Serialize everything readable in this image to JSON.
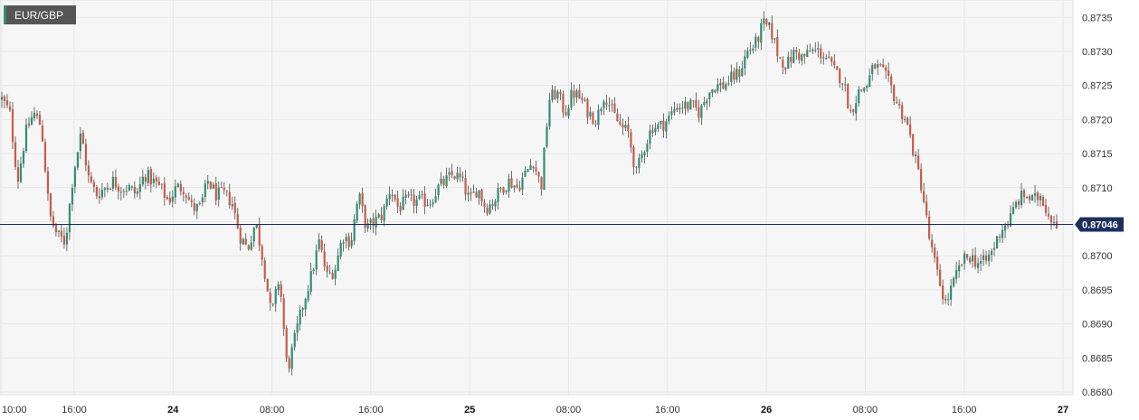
{
  "symbol": {
    "label": "EUR/GBP"
  },
  "colors": {
    "up": "#2f8f74",
    "down": "#cc5a48",
    "current_line": "#1b2d63",
    "current_tag_bg": "#1d2f5e",
    "grid": "#e7e7e7",
    "plot_bg": "#f6f6f6"
  },
  "chart_data": {
    "type": "candlestick",
    "title": "EUR/GBP",
    "y_axis": {
      "min": 0.868,
      "max": 0.87375,
      "ticks": [
        "0.8735",
        "0.8730",
        "0.8725",
        "0.8720",
        "0.8715",
        "0.8710",
        "0.8705",
        "0.8700",
        "0.8695",
        "0.8690",
        "0.8685",
        "0.8680"
      ]
    },
    "x_axis": {
      "ticks": [
        {
          "label": "10:00",
          "bold": false
        },
        {
          "label": "16:00",
          "bold": false
        },
        {
          "label": "24",
          "bold": true
        },
        {
          "label": "08:00",
          "bold": false
        },
        {
          "label": "16:00",
          "bold": false
        },
        {
          "label": "25",
          "bold": true
        },
        {
          "label": "08:00",
          "bold": false
        },
        {
          "label": "16:00",
          "bold": false
        },
        {
          "label": "26",
          "bold": true
        },
        {
          "label": "08:00",
          "bold": false
        },
        {
          "label": "16:00",
          "bold": false
        },
        {
          "label": "27",
          "bold": true
        }
      ]
    },
    "current_price": "0.87046",
    "grid": true,
    "path": [
      0.8723,
      0.8721,
      0.8711,
      0.8718,
      0.8721,
      0.8719,
      0.8706,
      0.8703,
      0.8702,
      0.8712,
      0.8718,
      0.8711,
      0.8709,
      0.871,
      0.8711,
      0.871,
      0.871,
      0.8709,
      0.8712,
      0.8711,
      0.871,
      0.8708,
      0.871,
      0.871,
      0.8707,
      0.8707,
      0.8711,
      0.8709,
      0.8709,
      0.8708,
      0.8703,
      0.8701,
      0.8705,
      0.8699,
      0.8691,
      0.8697,
      0.8683,
      0.8688,
      0.8693,
      0.8697,
      0.8702,
      0.8697,
      0.8698,
      0.8703,
      0.8702,
      0.8709,
      0.8704,
      0.8705,
      0.8706,
      0.871,
      0.8707,
      0.8708,
      0.8708,
      0.8708,
      0.8708,
      0.871,
      0.8711,
      0.8712,
      0.8711,
      0.8708,
      0.871,
      0.8707,
      0.8708,
      0.871,
      0.8711,
      0.871,
      0.8712,
      0.8714,
      0.871,
      0.8723,
      0.8724,
      0.8721,
      0.8724,
      0.8723,
      0.8721,
      0.872,
      0.8724,
      0.8721,
      0.8719,
      0.8718,
      0.8712,
      0.8716,
      0.8719,
      0.8719,
      0.872,
      0.8722,
      0.8722,
      0.8722,
      0.8721,
      0.8724,
      0.8725,
      0.8725,
      0.8726,
      0.8727,
      0.873,
      0.8731,
      0.8734,
      0.8733,
      0.8729,
      0.8728,
      0.873,
      0.8729,
      0.873,
      0.873,
      0.8729,
      0.8727,
      0.8726,
      0.8721,
      0.8724,
      0.8725,
      0.8728,
      0.8727,
      0.8725,
      0.8722,
      0.872,
      0.8715,
      0.871,
      0.8702,
      0.8697,
      0.8693,
      0.8696,
      0.8699,
      0.87,
      0.8699,
      0.8699,
      0.8701,
      0.8704,
      0.8705,
      0.8708,
      0.8709,
      0.8708,
      0.8709,
      0.8706,
      0.8705
    ]
  }
}
